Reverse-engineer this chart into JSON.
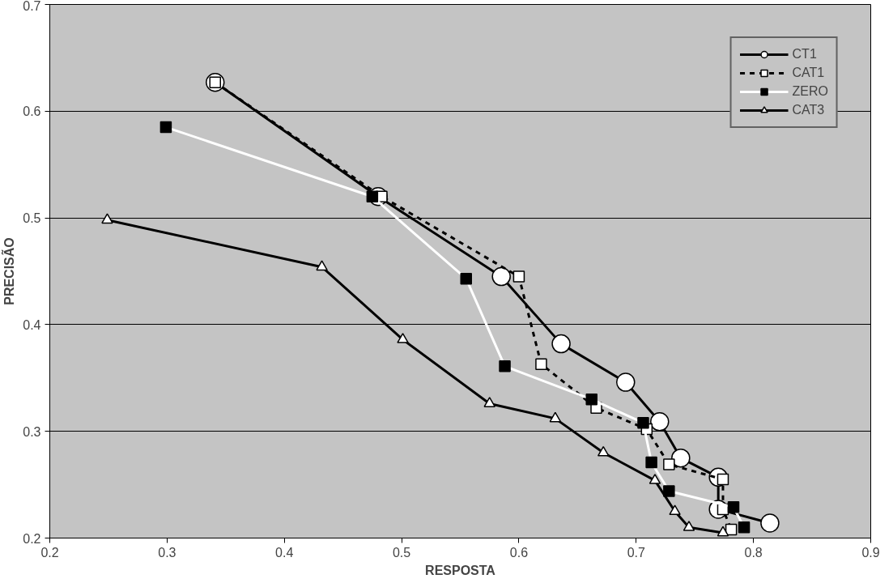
{
  "chart_data": {
    "type": "line",
    "xlabel": "RESPOSTA",
    "ylabel": "PRECISÃO",
    "xlim": [
      0.2,
      0.9
    ],
    "ylim": [
      0.2,
      0.7
    ],
    "xticks": [
      0.2,
      0.3,
      0.4,
      0.5,
      0.6,
      0.7,
      0.8,
      0.9
    ],
    "yticks": [
      0.2,
      0.3,
      0.4,
      0.5,
      0.6,
      0.7
    ],
    "grid": "y",
    "legend": "top right",
    "series": [
      {
        "name": "CT1",
        "color": "#000000",
        "marker": "circle",
        "line_style": "solid",
        "x": [
          0.341,
          0.48,
          0.585,
          0.636,
          0.691,
          0.72,
          0.738,
          0.77,
          0.77,
          0.814
        ],
        "values": [
          0.627,
          0.52,
          0.445,
          0.382,
          0.346,
          0.309,
          0.275,
          0.257,
          0.227,
          0.214
        ]
      },
      {
        "name": "CAT1",
        "color": "#000000",
        "marker": "square",
        "line_style": "dashed",
        "x": [
          0.341,
          0.483,
          0.6,
          0.619,
          0.666,
          0.709,
          0.728,
          0.774,
          0.774,
          0.781
        ],
        "values": [
          0.627,
          0.52,
          0.445,
          0.363,
          0.322,
          0.302,
          0.269,
          0.255,
          0.227,
          0.208
        ]
      },
      {
        "name": "ZERO",
        "color": "#ffffff",
        "marker": "square",
        "line_style": "solid",
        "x": [
          0.299,
          0.475,
          0.555,
          0.588,
          0.662,
          0.706,
          0.713,
          0.728,
          0.783,
          0.792
        ],
        "values": [
          0.585,
          0.52,
          0.443,
          0.361,
          0.33,
          0.308,
          0.271,
          0.244,
          0.229,
          0.21
        ]
      },
      {
        "name": "CAT3",
        "color": "#000000",
        "marker": "triangle",
        "line_style": "solid",
        "x": [
          0.249,
          0.432,
          0.501,
          0.575,
          0.631,
          0.672,
          0.716,
          0.733,
          0.745,
          0.774
        ],
        "values": [
          0.498,
          0.454,
          0.386,
          0.326,
          0.312,
          0.28,
          0.254,
          0.225,
          0.21,
          0.205
        ]
      }
    ]
  }
}
